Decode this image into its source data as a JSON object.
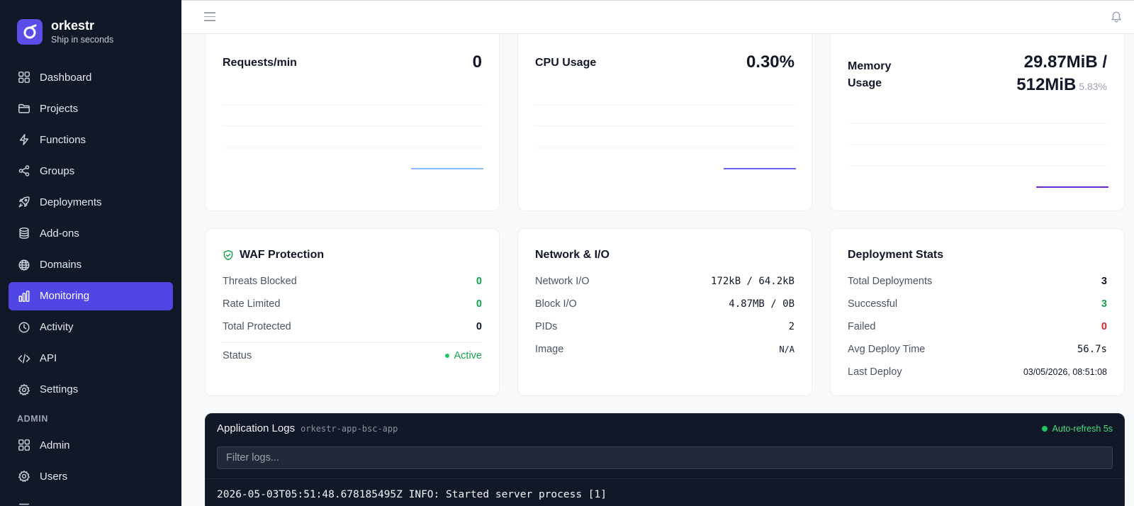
{
  "app": {
    "name": "orkestr",
    "tagline": "Ship in seconds"
  },
  "sidebar": {
    "items": [
      {
        "label": "Dashboard",
        "icon": "grid-icon"
      },
      {
        "label": "Projects",
        "icon": "folder-icon"
      },
      {
        "label": "Functions",
        "icon": "bolt-icon"
      },
      {
        "label": "Groups",
        "icon": "share-icon"
      },
      {
        "label": "Deployments",
        "icon": "rocket-icon"
      },
      {
        "label": "Add-ons",
        "icon": "database-icon"
      },
      {
        "label": "Domains",
        "icon": "globe-icon"
      },
      {
        "label": "Monitoring",
        "icon": "bar-chart-icon",
        "active": true
      },
      {
        "label": "Activity",
        "icon": "clock-icon"
      },
      {
        "label": "API",
        "icon": "code-icon"
      },
      {
        "label": "Settings",
        "icon": "gear-icon"
      }
    ],
    "admin_section": "ADMIN",
    "admin_items": [
      {
        "label": "Admin",
        "icon": "grid-icon"
      },
      {
        "label": "Users",
        "icon": "gear-icon"
      }
    ]
  },
  "metrics": {
    "requests": {
      "label": "Requests/min",
      "value": "0",
      "line_color": "#60a5fa",
      "series_level": 0
    },
    "cpu": {
      "label": "CPU Usage",
      "value": "0.30%",
      "line_color": "#6366f1",
      "series_level": 0.003
    },
    "memory": {
      "label": "Memory Usage",
      "value": "29.87MiB /",
      "value2": "512MiB",
      "percent": "5.83%",
      "line_color": "#6d28d9",
      "series_level": 0.0583
    }
  },
  "waf": {
    "title": "WAF Protection",
    "rows": [
      {
        "label": "Threats Blocked",
        "value": "0"
      },
      {
        "label": "Rate Limited",
        "value": "0"
      },
      {
        "label": "Total Protected",
        "value": "0"
      }
    ],
    "status_label": "Status",
    "status_value": "Active"
  },
  "network": {
    "title": "Network & I/O",
    "rows": [
      {
        "label": "Network I/O",
        "value": "172kB / 64.2kB"
      },
      {
        "label": "Block I/O",
        "value": "4.87MB / 0B"
      },
      {
        "label": "PIDs",
        "value": "2"
      },
      {
        "label": "Image",
        "value": "N/A"
      }
    ]
  },
  "deployments": {
    "title": "Deployment Stats",
    "rows": [
      {
        "label": "Total Deployments",
        "value": "3"
      },
      {
        "label": "Successful",
        "value": "3"
      },
      {
        "label": "Failed",
        "value": "0"
      },
      {
        "label": "Avg Deploy Time",
        "value": "56.7s"
      },
      {
        "label": "Last Deploy",
        "value": "03/05/2026, 08:51:08"
      }
    ]
  },
  "logs": {
    "title": "Application Logs",
    "app_name": "orkestr-app-bsc-app",
    "autorefresh": "Auto-refresh 5s",
    "filter_placeholder": "Filter logs...",
    "lines": [
      "2026-05-03T05:51:48.678185495Z INFO: Started server process [1]"
    ]
  },
  "colors": {
    "accent": "#4f46e5",
    "sidebar_bg": "#111827",
    "success": "#16a34a",
    "danger": "#dc2626"
  }
}
